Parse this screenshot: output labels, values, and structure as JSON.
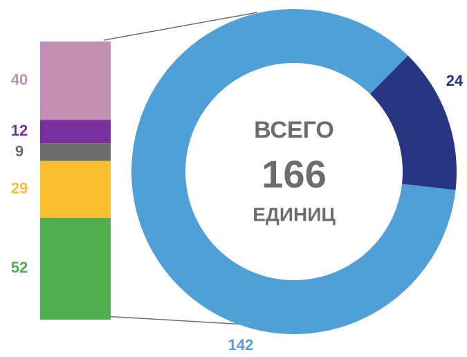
{
  "chart_data": [
    {
      "type": "donut",
      "values": [
        142,
        24
      ],
      "colors": [
        "#4f9fd8",
        "#283583"
      ],
      "center_label_top": "ВСЕГО",
      "center_value": 166,
      "center_label_bottom": "ЕДИНИЦ"
    },
    {
      "type": "stacked_bar",
      "values": [
        40,
        12,
        9,
        29,
        52
      ],
      "colors": [
        "#c48fb4",
        "#7a2f9e",
        "#6d6d6d",
        "#fbbe2c",
        "#4fae4f"
      ]
    }
  ]
}
